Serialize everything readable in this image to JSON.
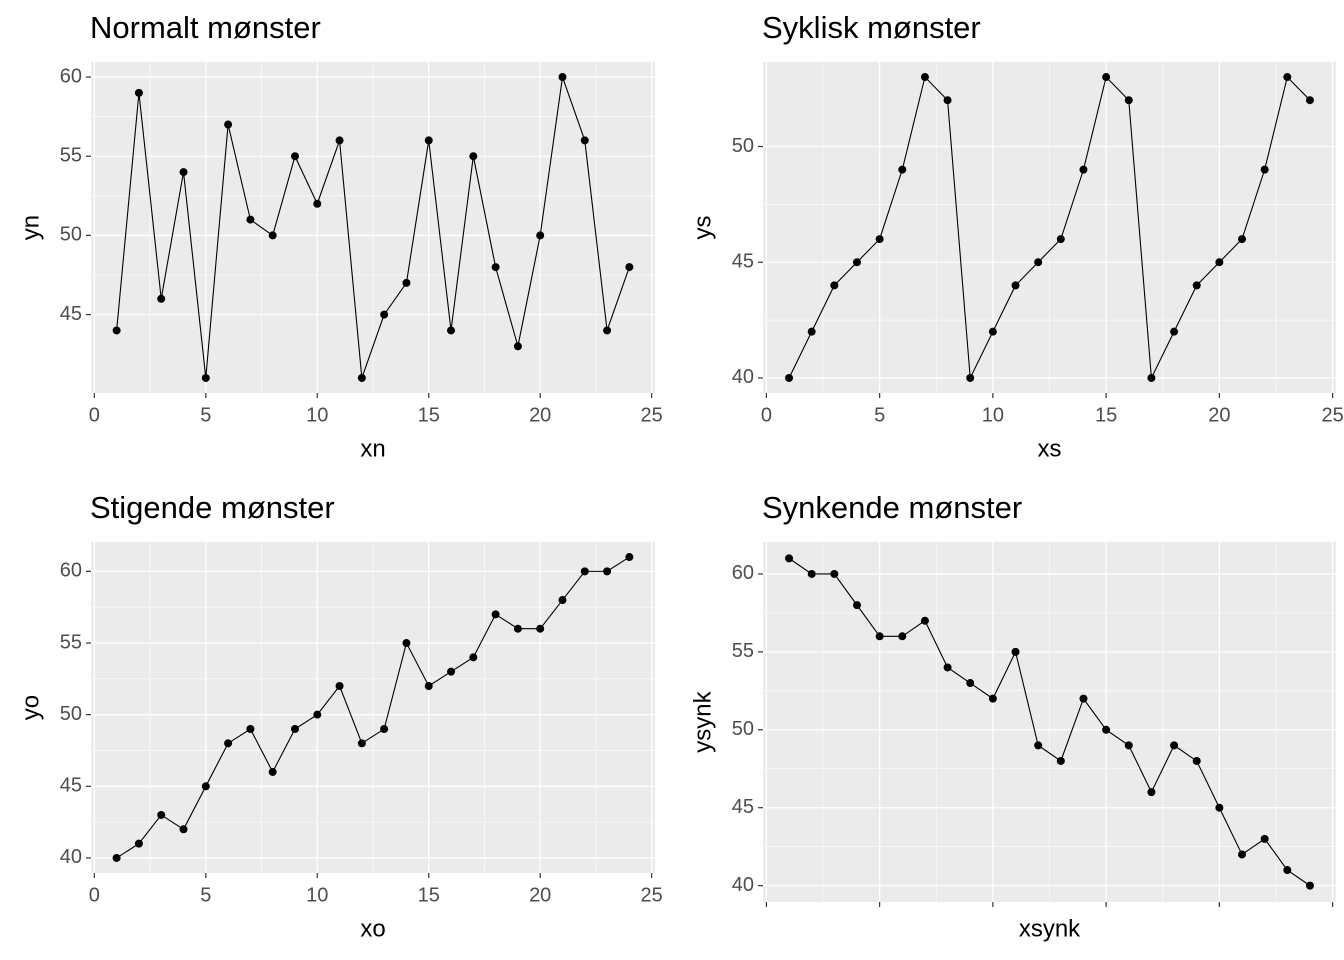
{
  "chart_data": [
    {
      "type": "line",
      "title": "Normalt mønster",
      "xlabel": "xn",
      "ylabel": "yn",
      "x": [
        1,
        2,
        3,
        4,
        5,
        6,
        7,
        8,
        9,
        10,
        11,
        12,
        13,
        14,
        15,
        16,
        17,
        18,
        19,
        20,
        21,
        22,
        23,
        24
      ],
      "values": [
        44,
        59,
        46,
        54,
        41,
        57,
        51,
        50,
        55,
        52,
        56,
        41,
        45,
        47,
        56,
        44,
        55,
        48,
        43,
        50,
        60,
        56,
        44,
        48
      ],
      "color": "#000000",
      "xlim": [
        -0.15,
        25.15
      ],
      "ylim": [
        40.05,
        60.95
      ],
      "xticks": [
        0,
        5,
        10,
        15,
        20,
        25
      ],
      "yticks": [
        45,
        50,
        55,
        60
      ],
      "grid": true,
      "show_xtick_labels": true
    },
    {
      "type": "line",
      "title": "Syklisk mønster",
      "xlabel": "xs",
      "ylabel": "ys",
      "x": [
        1,
        2,
        3,
        4,
        5,
        6,
        7,
        8,
        9,
        10,
        11,
        12,
        13,
        14,
        15,
        16,
        17,
        18,
        19,
        20,
        21,
        22,
        23,
        24
      ],
      "values": [
        40,
        42,
        44,
        45,
        46,
        49,
        53,
        52,
        40,
        42,
        44,
        45,
        46,
        49,
        53,
        52,
        40,
        42,
        44,
        45,
        46,
        49,
        53,
        52
      ],
      "color": "#000000",
      "xlim": [
        -0.15,
        25.15
      ],
      "ylim": [
        39.35,
        53.65
      ],
      "xticks": [
        0,
        5,
        10,
        15,
        20,
        25
      ],
      "yticks": [
        40,
        45,
        50
      ],
      "grid": true,
      "show_xtick_labels": true
    },
    {
      "type": "line",
      "title": "Stigende mønster",
      "xlabel": "xo",
      "ylabel": "yo",
      "x": [
        1,
        2,
        3,
        4,
        5,
        6,
        7,
        8,
        9,
        10,
        11,
        12,
        13,
        14,
        15,
        16,
        17,
        18,
        19,
        20,
        21,
        22,
        23,
        24
      ],
      "values": [
        40,
        41,
        43,
        42,
        45,
        48,
        49,
        46,
        49,
        50,
        52,
        48,
        49,
        55,
        52,
        53,
        54,
        57,
        56,
        56,
        58,
        60,
        60,
        61
      ],
      "color": "#000000",
      "xlim": [
        -0.15,
        25.15
      ],
      "ylim": [
        38.95,
        62.05
      ],
      "xticks": [
        0,
        5,
        10,
        15,
        20,
        25
      ],
      "yticks": [
        40,
        45,
        50,
        55,
        60
      ],
      "grid": true,
      "show_xtick_labels": true
    },
    {
      "type": "line",
      "title": "Synkende mønster",
      "xlabel": "xsynk",
      "ylabel": "ysynk",
      "x": [
        1,
        2,
        3,
        4,
        5,
        6,
        7,
        8,
        9,
        10,
        11,
        12,
        13,
        14,
        15,
        16,
        17,
        18,
        19,
        20,
        21,
        22,
        23,
        24
      ],
      "values": [
        61,
        60,
        60,
        58,
        56,
        56,
        57,
        54,
        53,
        52,
        55,
        49,
        48,
        52,
        50,
        49,
        46,
        49,
        48,
        45,
        42,
        43,
        41,
        40
      ],
      "color": "#000000",
      "xlim": [
        -0.15,
        25.15
      ],
      "ylim": [
        38.95,
        62.05
      ],
      "xticks": [
        0,
        5,
        10,
        15,
        20,
        25
      ],
      "yticks": [
        40,
        45,
        50,
        55,
        60
      ],
      "grid": true,
      "show_xtick_labels": false
    }
  ]
}
